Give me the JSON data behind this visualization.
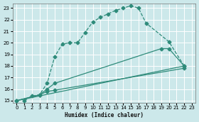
{
  "xlabel": "Humidex (Indice chaleur)",
  "bg_color": "#cce8ea",
  "grid_color": "#ffffff",
  "line_color": "#2e8b7a",
  "xlim": [
    -0.5,
    23.5
  ],
  "ylim": [
    14.8,
    23.4
  ],
  "yticks": [
    15,
    16,
    17,
    18,
    19,
    20,
    21,
    22,
    23
  ],
  "xticks": [
    0,
    1,
    2,
    3,
    4,
    5,
    6,
    7,
    8,
    9,
    10,
    11,
    12,
    13,
    14,
    15,
    16,
    17,
    18,
    19,
    20,
    21,
    22,
    23
  ],
  "curve1_x": [
    1,
    2,
    3,
    4,
    5,
    6,
    7,
    8,
    9,
    10,
    11,
    12,
    13,
    14,
    15,
    16,
    17,
    20,
    22
  ],
  "curve1_y": [
    15.0,
    15.4,
    15.5,
    16.5,
    18.8,
    19.9,
    20.0,
    20.0,
    20.9,
    21.8,
    22.2,
    22.5,
    22.8,
    23.0,
    23.2,
    23.0,
    21.7,
    20.1,
    18.0
  ],
  "curve2_x": [
    0,
    3,
    4,
    5,
    19,
    20,
    22
  ],
  "curve2_y": [
    15.0,
    15.5,
    16.0,
    16.5,
    19.5,
    19.5,
    18.0
  ],
  "curve3_x": [
    0,
    3,
    4,
    5,
    22
  ],
  "curve3_y": [
    15.0,
    15.5,
    15.8,
    15.9,
    17.8
  ],
  "curve4_x": [
    0,
    22
  ],
  "curve4_y": [
    15.0,
    18.0
  ]
}
